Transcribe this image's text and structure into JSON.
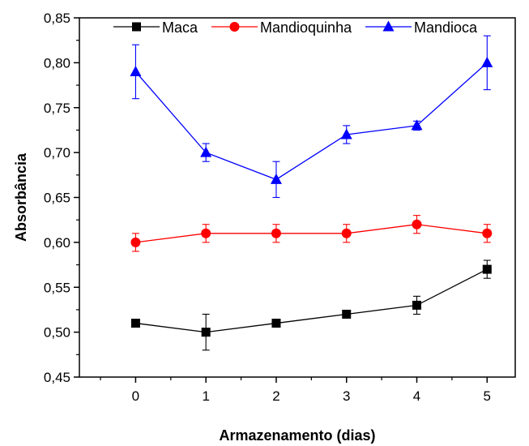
{
  "chart_data": {
    "type": "line",
    "title": "",
    "xlabel": "Armazenamento (dias)",
    "ylabel": "Absorbância",
    "x": [
      0,
      1,
      2,
      3,
      4,
      5
    ],
    "xticks": [
      "0",
      "1",
      "2",
      "3",
      "4",
      "5"
    ],
    "xlim": [
      -0.8,
      5.4
    ],
    "ylim": [
      0.45,
      0.85
    ],
    "yticks": [
      "0,45",
      "0,50",
      "0,55",
      "0,60",
      "0,65",
      "0,70",
      "0,75",
      "0,80",
      "0,85"
    ],
    "grid": false,
    "legend_position": "top",
    "series": [
      {
        "name": "Maca",
        "color": "#000000",
        "marker": "square",
        "values": [
          0.51,
          0.5,
          0.51,
          0.52,
          0.53,
          0.57
        ],
        "errors": [
          0.0,
          0.02,
          0.0,
          0.0,
          0.01,
          0.01
        ]
      },
      {
        "name": "Mandioquinha",
        "color": "#ff0000",
        "marker": "circle",
        "values": [
          0.6,
          0.61,
          0.61,
          0.61,
          0.62,
          0.61
        ],
        "errors": [
          0.01,
          0.01,
          0.01,
          0.01,
          0.01,
          0.01
        ]
      },
      {
        "name": "Mandioca",
        "color": "#0000ff",
        "marker": "triangle",
        "values": [
          0.79,
          0.7,
          0.67,
          0.72,
          0.73,
          0.8
        ],
        "errors": [
          0.03,
          0.01,
          0.02,
          0.01,
          0.005,
          0.03
        ]
      }
    ]
  }
}
